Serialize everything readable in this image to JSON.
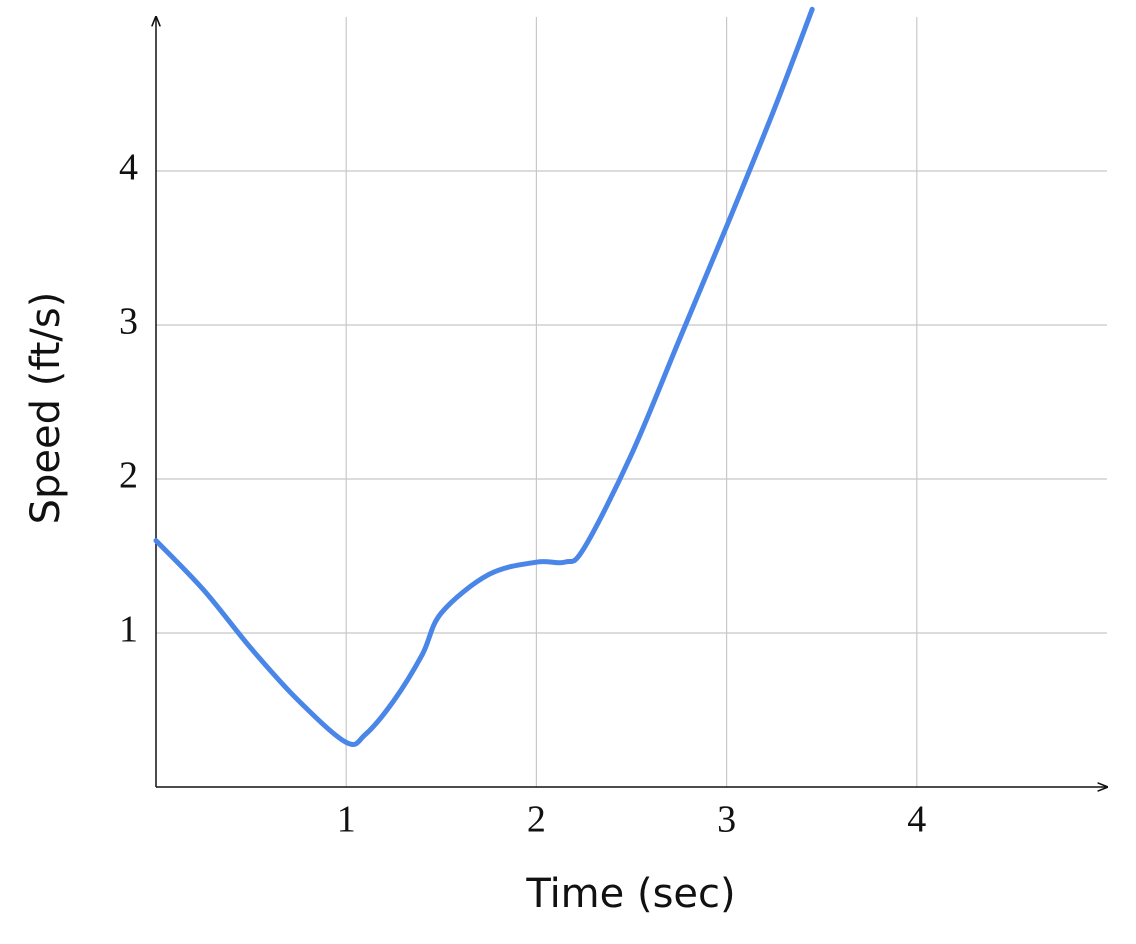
{
  "chart_data": {
    "type": "line",
    "x_label": "Time (sec)",
    "y_label": "Speed (ft/s)",
    "x": [
      0,
      0.25,
      0.5,
      0.75,
      1.0,
      1.1,
      1.25,
      1.4,
      1.5,
      1.75,
      2.0,
      2.15,
      2.25,
      2.5,
      2.75,
      3.0,
      3.25,
      3.45
    ],
    "series": [
      {
        "color": "#4a86e8",
        "values": [
          1.6,
          1.28,
          0.9,
          0.56,
          0.29,
          0.34,
          0.56,
          0.86,
          1.13,
          1.38,
          1.46,
          1.46,
          1.55,
          2.16,
          2.9,
          3.64,
          4.4,
          5.05
        ]
      }
    ],
    "xlim": [
      0,
      5
    ],
    "ylim": [
      0,
      5
    ],
    "xticks": [
      1,
      2,
      3,
      4
    ],
    "yticks": [
      1,
      2,
      3,
      4
    ],
    "grid": true
  }
}
